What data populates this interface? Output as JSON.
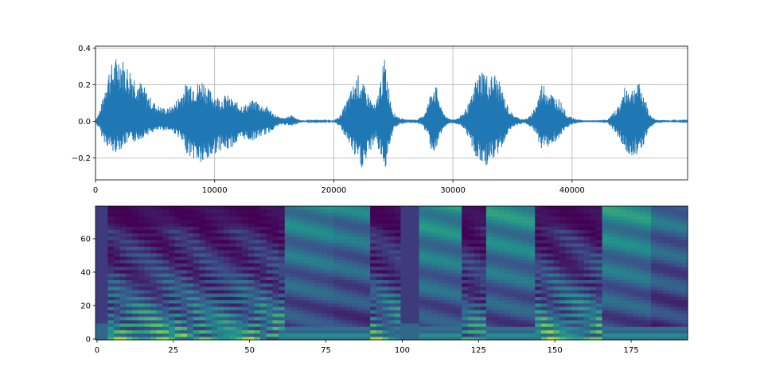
{
  "chart_data": [
    {
      "type": "line",
      "title": "",
      "xlabel": "",
      "ylabel": "",
      "xlim": [
        0,
        49700
      ],
      "ylim": [
        -0.32,
        0.41
      ],
      "grid": true,
      "line_color": "#1f77b4",
      "x_ticks": [
        0,
        10000,
        20000,
        30000,
        40000
      ],
      "x_tick_labels": [
        "0",
        "10000",
        "20000",
        "30000",
        "40000"
      ],
      "y_ticks": [
        -0.2,
        0.0,
        0.2,
        0.4
      ],
      "y_tick_labels": [
        "−0.2",
        "0.0",
        "0.2",
        "0.4"
      ],
      "envelope": {
        "x": [
          0,
          300,
          600,
          1000,
          1500,
          2000,
          2500,
          3000,
          3500,
          4000,
          4500,
          5000,
          5500,
          6000,
          6500,
          7000,
          7500,
          8000,
          8500,
          9000,
          9500,
          10000,
          10500,
          11000,
          11500,
          12000,
          12500,
          13000,
          13500,
          14000,
          14500,
          15000,
          15500,
          16000,
          16500,
          17000,
          17500,
          18000,
          19000,
          20000,
          20500,
          21000,
          21500,
          22000,
          22500,
          23000,
          23500,
          24000,
          24300,
          24600,
          25000,
          25500,
          26000,
          27000,
          27500,
          28000,
          28300,
          28700,
          29000,
          29500,
          30000,
          30500,
          31000,
          31500,
          32000,
          32500,
          33000,
          33500,
          34000,
          34500,
          35000,
          35500,
          36000,
          36500,
          37000,
          37500,
          38000,
          38500,
          39000,
          39500,
          40000,
          40500,
          41000,
          42000,
          43000,
          43500,
          44000,
          44500,
          45000,
          45500,
          46000,
          46500,
          47000,
          48000,
          49700
        ],
        "upper": [
          0.01,
          0.05,
          0.12,
          0.28,
          0.33,
          0.38,
          0.32,
          0.29,
          0.24,
          0.2,
          0.14,
          0.1,
          0.08,
          0.07,
          0.09,
          0.14,
          0.2,
          0.23,
          0.21,
          0.24,
          0.18,
          0.15,
          0.13,
          0.15,
          0.12,
          0.1,
          0.09,
          0.11,
          0.12,
          0.09,
          0.08,
          0.04,
          0.02,
          0.02,
          0.04,
          0.01,
          0.005,
          0.003,
          0.003,
          0.004,
          0.03,
          0.1,
          0.18,
          0.26,
          0.2,
          0.14,
          0.08,
          0.26,
          0.36,
          0.2,
          0.05,
          0.02,
          0.01,
          0.01,
          0.03,
          0.12,
          0.22,
          0.18,
          0.08,
          0.02,
          0.01,
          0.02,
          0.06,
          0.12,
          0.25,
          0.3,
          0.24,
          0.27,
          0.2,
          0.1,
          0.04,
          0.02,
          0.01,
          0.03,
          0.1,
          0.22,
          0.18,
          0.14,
          0.12,
          0.04,
          0.02,
          0.01,
          0.005,
          0.005,
          0.01,
          0.05,
          0.1,
          0.2,
          0.18,
          0.22,
          0.16,
          0.04,
          0.01,
          0.005,
          0.003
        ],
        "lower": [
          -0.01,
          -0.04,
          -0.1,
          -0.14,
          -0.18,
          -0.16,
          -0.13,
          -0.12,
          -0.11,
          -0.09,
          -0.07,
          -0.06,
          -0.05,
          -0.05,
          -0.06,
          -0.09,
          -0.16,
          -0.2,
          -0.22,
          -0.25,
          -0.22,
          -0.18,
          -0.16,
          -0.17,
          -0.14,
          -0.12,
          -0.1,
          -0.11,
          -0.1,
          -0.08,
          -0.07,
          -0.04,
          -0.02,
          -0.02,
          -0.03,
          -0.01,
          -0.005,
          -0.003,
          -0.003,
          -0.004,
          -0.03,
          -0.09,
          -0.16,
          -0.24,
          -0.27,
          -0.18,
          -0.1,
          -0.22,
          -0.27,
          -0.16,
          -0.05,
          -0.02,
          -0.01,
          -0.01,
          -0.03,
          -0.1,
          -0.19,
          -0.16,
          -0.07,
          -0.02,
          -0.01,
          -0.02,
          -0.06,
          -0.12,
          -0.22,
          -0.25,
          -0.24,
          -0.22,
          -0.16,
          -0.08,
          -0.03,
          -0.02,
          -0.01,
          -0.03,
          -0.08,
          -0.16,
          -0.14,
          -0.12,
          -0.1,
          -0.04,
          -0.02,
          -0.01,
          -0.005,
          -0.005,
          -0.01,
          -0.05,
          -0.1,
          -0.18,
          -0.19,
          -0.18,
          -0.13,
          -0.04,
          -0.01,
          -0.005,
          -0.003
        ]
      }
    },
    {
      "type": "heatmap",
      "title": "",
      "xlabel": "",
      "ylabel": "",
      "xlim": [
        -0.5,
        193.5
      ],
      "ylim": [
        -0.5,
        79.5
      ],
      "colormap": "viridis",
      "colormap_stops": [
        "#440154",
        "#3b528b",
        "#21918c",
        "#5ec962",
        "#fde725"
      ],
      "x_ticks": [
        0,
        25,
        50,
        75,
        100,
        125,
        150,
        175
      ],
      "x_tick_labels": [
        "0",
        "25",
        "50",
        "75",
        "100",
        "125",
        "150",
        "175"
      ],
      "y_ticks": [
        0,
        20,
        40,
        60
      ],
      "y_tick_labels": [
        "0",
        "20",
        "40",
        "60"
      ],
      "n_frames": 194,
      "n_bins": 80,
      "segments": [
        {
          "start": 0,
          "end": 4,
          "level": 0.3,
          "kind": "quiet"
        },
        {
          "start": 4,
          "end": 62,
          "level": 0.82,
          "kind": "voiced"
        },
        {
          "start": 62,
          "end": 78,
          "level": 0.5,
          "kind": "fricative"
        },
        {
          "start": 78,
          "end": 90,
          "level": 0.45,
          "kind": "fricative"
        },
        {
          "start": 90,
          "end": 100,
          "level": 0.8,
          "kind": "voiced"
        },
        {
          "start": 100,
          "end": 106,
          "level": 0.3,
          "kind": "quiet"
        },
        {
          "start": 106,
          "end": 120,
          "level": 0.55,
          "kind": "fricative"
        },
        {
          "start": 120,
          "end": 128,
          "level": 0.7,
          "kind": "voiced"
        },
        {
          "start": 128,
          "end": 144,
          "level": 0.55,
          "kind": "fricative"
        },
        {
          "start": 144,
          "end": 166,
          "level": 0.85,
          "kind": "voiced"
        },
        {
          "start": 166,
          "end": 182,
          "level": 0.55,
          "kind": "fricative"
        },
        {
          "start": 182,
          "end": 194,
          "level": 0.4,
          "kind": "fricative"
        }
      ]
    }
  ]
}
